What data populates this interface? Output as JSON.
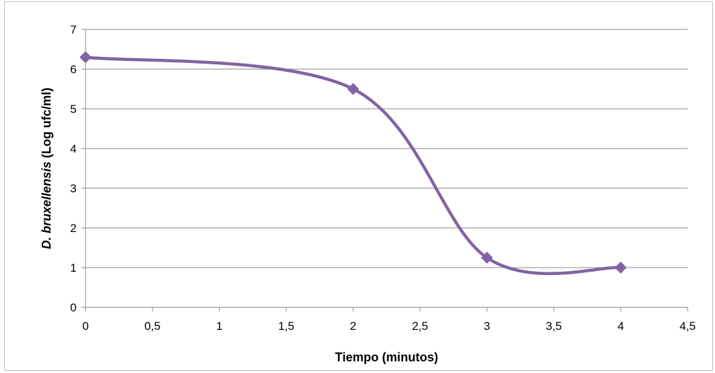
{
  "chart_data": {
    "type": "line",
    "title": "",
    "xlabel": "Tiempo (minutos)",
    "ylabel_italic": "D. bruxellensis",
    "ylabel_rest": " (Log ufc/ml)",
    "x_ticks": [
      "0",
      "0,5",
      "1",
      "1,5",
      "2",
      "2,5",
      "3",
      "3,5",
      "4",
      "4,5"
    ],
    "y_ticks": [
      "0",
      "1",
      "2",
      "3",
      "4",
      "5",
      "6",
      "7"
    ],
    "xlim": [
      0,
      4.5
    ],
    "ylim": [
      0,
      7
    ],
    "grid": "horizontal",
    "legend": "none",
    "smooth": true,
    "marker": "diamond",
    "series": [
      {
        "x": [
          0,
          2,
          3,
          4
        ],
        "y": [
          6.3,
          5.5,
          1.25,
          1.0
        ],
        "color": "#8064a2"
      }
    ]
  }
}
